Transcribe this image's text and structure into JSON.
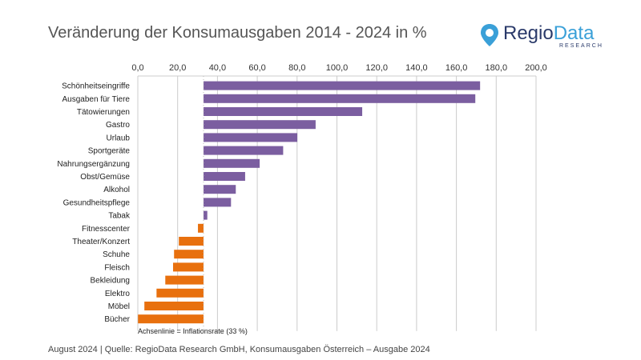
{
  "header": {
    "title": "Veränderung der Konsumausgaben 2014 - 2024 in %"
  },
  "logo": {
    "text_a": "Regio",
    "text_b": "Data",
    "sub": "RESEARCH",
    "color_dark": "#2a3a6a",
    "color_light": "#3aa0d8"
  },
  "chart_data": {
    "type": "bar",
    "orientation": "horizontal",
    "title": "Veränderung der Konsumausgaben 2014 - 2024 in %",
    "categories": [
      "Schönheitseingriffe",
      "Ausgaben für Tiere",
      "Tätowierungen",
      "Gastro",
      "Urlaub",
      "Sportgeräte",
      "Nahrungsergänzung",
      "Obst/Gemüse",
      "Alkohol",
      "Gesundheitspflege",
      "Tabak",
      "Fitnesscenter",
      "Theater/Konzert",
      "Schuhe",
      "Fleisch",
      "Bekleidung",
      "Elektro",
      "Möbel",
      "Bücher"
    ],
    "values": [
      171.9,
      169.5,
      112.7,
      89.3,
      80.1,
      73.0,
      61.2,
      53.9,
      49.2,
      46.8,
      34.9,
      30.2,
      20.6,
      18.2,
      17.7,
      13.8,
      9.4,
      3.3,
      0.1
    ],
    "baseline": 33,
    "xlim": [
      0,
      200
    ],
    "ticks": [
      "0,0",
      "20,0",
      "40,0",
      "60,0",
      "80,0",
      "100,0",
      "120,0",
      "140,0",
      "160,0",
      "180,0",
      "200,0"
    ],
    "tick_values": [
      0,
      20,
      40,
      60,
      80,
      100,
      120,
      140,
      160,
      180,
      200
    ],
    "axis_position": "top",
    "grid": true,
    "colors": {
      "above": "#7b5ea0",
      "below": "#e8700e",
      "grid": "#cccccc"
    },
    "annotation": "Achsenlinie = Inflationsrate (33 %)"
  },
  "footer": "August 2024  |  Quelle: RegioData Research GmbH, Konsumausgaben Österreich – Ausgabe 2024"
}
